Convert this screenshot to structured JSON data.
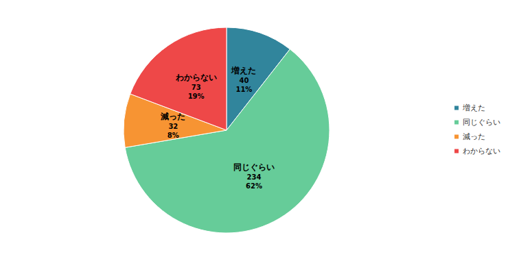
{
  "chart_data": {
    "type": "pie",
    "categories": [
      "増えた",
      "同じぐらい",
      "減った",
      "わからない"
    ],
    "values": [
      40,
      234,
      32,
      73
    ],
    "percent_labels": [
      "11%",
      "62%",
      "8%",
      "19%"
    ],
    "colors": [
      "#31859c",
      "#66cc99",
      "#f79433",
      "#ee4848"
    ],
    "legend": "right",
    "data_labels": true
  }
}
